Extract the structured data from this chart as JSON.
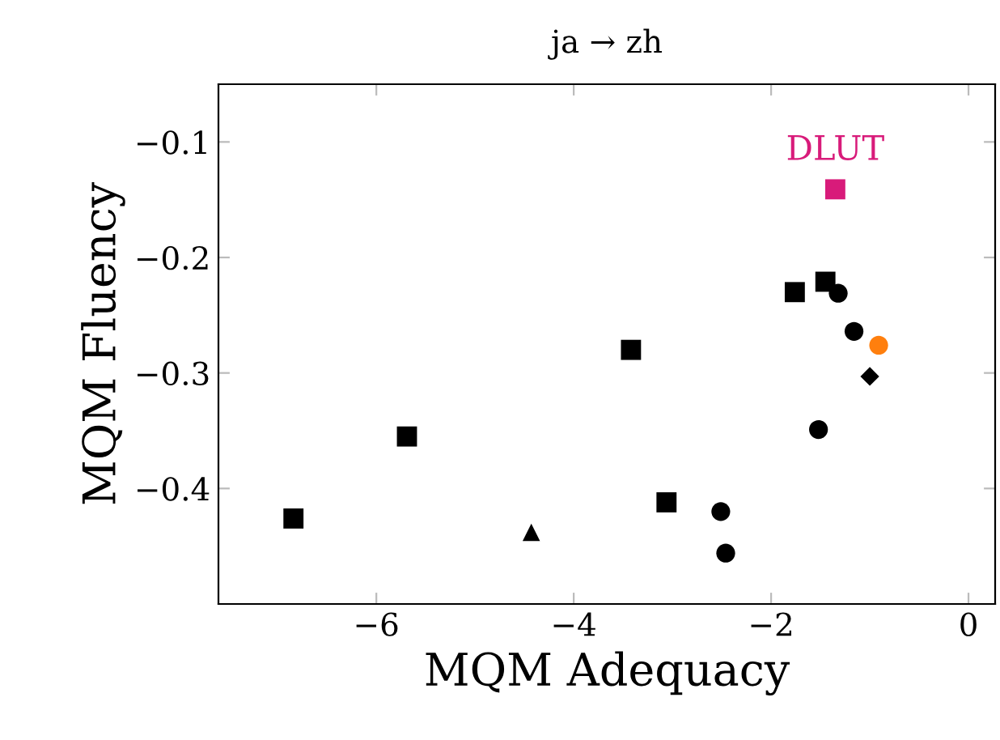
{
  "chart_data": {
    "type": "scatter",
    "title": "ja → zh",
    "xlabel": "MQM Adequacy",
    "ylabel": "MQM Fluency",
    "xlim": [
      -7.6,
      0.27
    ],
    "ylim": [
      -0.5,
      -0.05
    ],
    "xticks": [
      -6,
      -4,
      -2,
      0
    ],
    "yticks": [
      -0.1,
      -0.2,
      -0.3,
      -0.4
    ],
    "grid": false,
    "legend": false,
    "series": [
      {
        "color": "#000000",
        "marker": "square",
        "x": [
          -1.76,
          -1.45,
          -3.42,
          -5.69,
          -6.84,
          -3.06
        ],
        "values": [
          -0.23,
          -0.221,
          -0.28,
          -0.355,
          -0.426,
          -0.412
        ]
      },
      {
        "color": "#000000",
        "marker": "circle",
        "x": [
          -1.32,
          -1.16,
          -1.52,
          -2.51,
          -2.46
        ],
        "values": [
          -0.231,
          -0.264,
          -0.349,
          -0.42,
          -0.456
        ]
      },
      {
        "color": "#000000",
        "marker": "triangle",
        "x": [
          -4.43
        ],
        "values": [
          -0.438
        ]
      },
      {
        "color": "#000000",
        "marker": "diamond",
        "x": [
          -1.0
        ],
        "values": [
          -0.303
        ]
      },
      {
        "color": "#d81b7a",
        "marker": "square",
        "x": [
          -1.35
        ],
        "values": [
          -0.141
        ]
      },
      {
        "color": "#ff7f0e",
        "marker": "circle",
        "x": [
          -0.91
        ],
        "values": [
          -0.276
        ]
      }
    ],
    "annotations": [
      {
        "text": "DLUT",
        "x": -1.35,
        "y": -0.141
      }
    ]
  }
}
